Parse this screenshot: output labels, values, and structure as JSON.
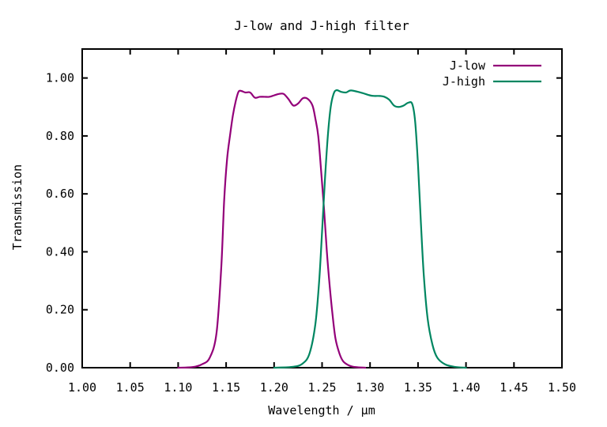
{
  "chart_data": {
    "type": "line",
    "title": "J-low and J-high filter",
    "xlabel": "Wavelength / µm",
    "ylabel": "Transmission",
    "xlim": [
      1.0,
      1.5
    ],
    "ylim": [
      0.0,
      1.1
    ],
    "x_ticks": [
      "1.00",
      "1.05",
      "1.10",
      "1.15",
      "1.20",
      "1.25",
      "1.30",
      "1.35",
      "1.40",
      "1.45",
      "1.50"
    ],
    "y_ticks": [
      "0.00",
      "0.20",
      "0.40",
      "0.60",
      "0.80",
      "1.00"
    ],
    "grid": false,
    "legend_position": "top-right",
    "series": [
      {
        "name": "J-low",
        "color": "#930079",
        "x": [
          1.1,
          1.115,
          1.125,
          1.133,
          1.14,
          1.145,
          1.148,
          1.151,
          1.154,
          1.157,
          1.16,
          1.163,
          1.166,
          1.17,
          1.175,
          1.18,
          1.185,
          1.19,
          1.195,
          1.2,
          1.205,
          1.21,
          1.215,
          1.22,
          1.225,
          1.23,
          1.235,
          1.24,
          1.243,
          1.246,
          1.249,
          1.252,
          1.255,
          1.258,
          1.261,
          1.264,
          1.268,
          1.272,
          1.278,
          1.285,
          1.295
        ],
        "y": [
          0.0,
          0.002,
          0.012,
          0.035,
          0.12,
          0.35,
          0.58,
          0.72,
          0.8,
          0.87,
          0.92,
          0.953,
          0.955,
          0.95,
          0.95,
          0.932,
          0.935,
          0.935,
          0.935,
          0.94,
          0.945,
          0.945,
          0.927,
          0.905,
          0.912,
          0.93,
          0.928,
          0.905,
          0.86,
          0.8,
          0.68,
          0.55,
          0.4,
          0.28,
          0.18,
          0.1,
          0.05,
          0.022,
          0.008,
          0.002,
          0.0
        ]
      },
      {
        "name": "J-high",
        "color": "#008661",
        "x": [
          1.2,
          1.22,
          1.23,
          1.237,
          1.243,
          1.247,
          1.25,
          1.253,
          1.256,
          1.259,
          1.262,
          1.265,
          1.27,
          1.275,
          1.28,
          1.29,
          1.3,
          1.305,
          1.31,
          1.315,
          1.32,
          1.325,
          1.33,
          1.335,
          1.34,
          1.344,
          1.347,
          1.35,
          1.353,
          1.356,
          1.36,
          1.365,
          1.37,
          1.378,
          1.388,
          1.4
        ],
        "y": [
          0.0,
          0.003,
          0.015,
          0.05,
          0.15,
          0.3,
          0.47,
          0.65,
          0.8,
          0.9,
          0.945,
          0.958,
          0.952,
          0.95,
          0.957,
          0.95,
          0.94,
          0.938,
          0.938,
          0.935,
          0.925,
          0.905,
          0.9,
          0.905,
          0.915,
          0.91,
          0.85,
          0.7,
          0.5,
          0.32,
          0.17,
          0.08,
          0.035,
          0.012,
          0.003,
          0.0
        ]
      }
    ]
  }
}
